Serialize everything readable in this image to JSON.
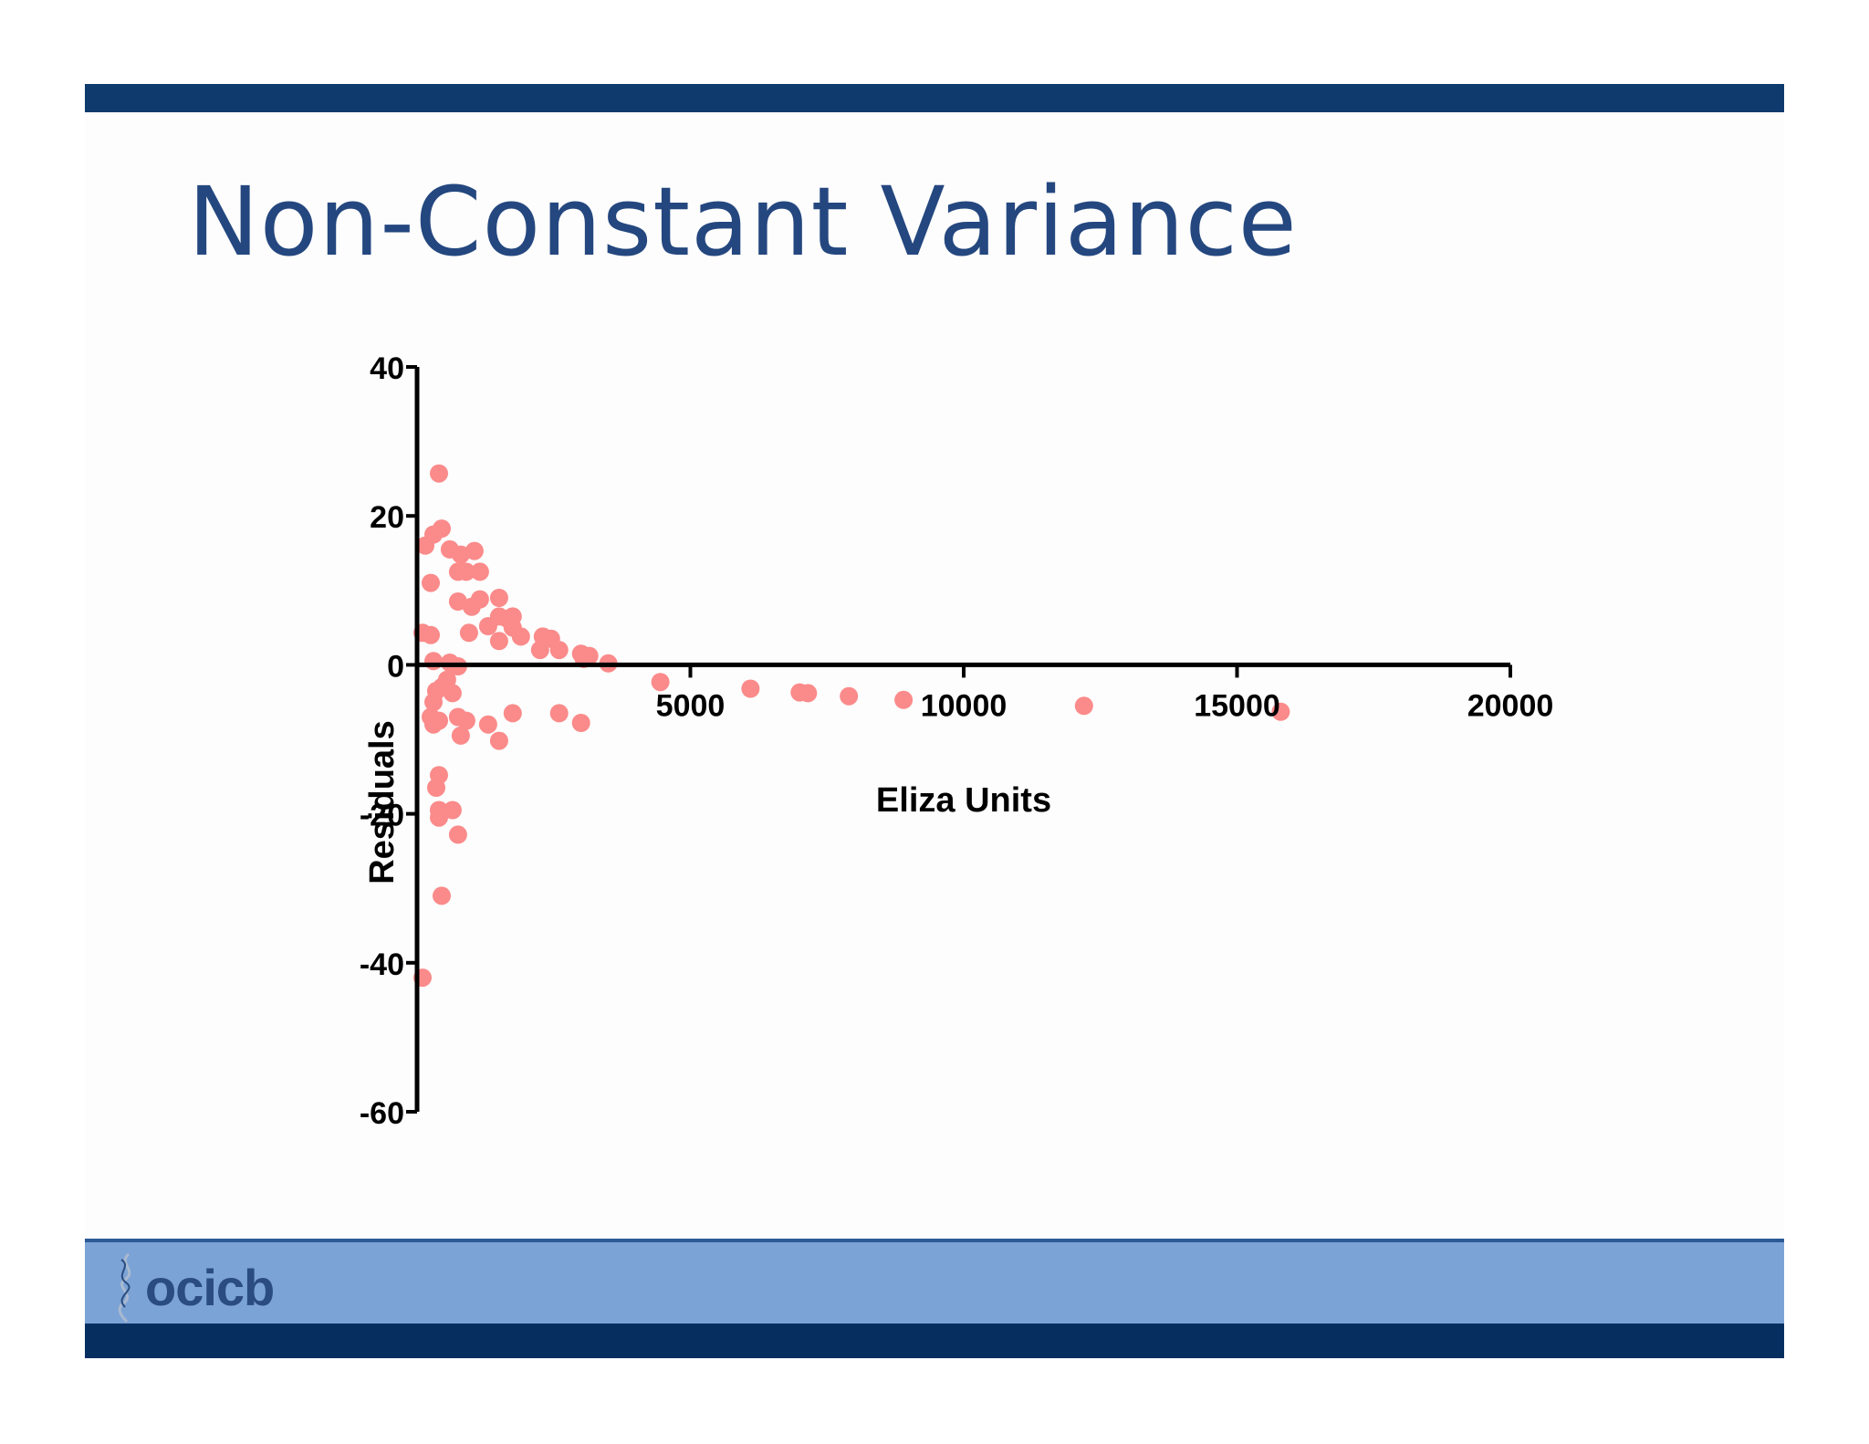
{
  "slide": {
    "title": "Non-Constant Variance",
    "logo_text": "ocicb",
    "colors": {
      "top_bar": "#0e3a6e",
      "title": "#24477f",
      "footer_band": "#7ca3d5",
      "footer_dark": "#062f60",
      "points": "#fb8a8a"
    }
  },
  "chart_data": {
    "type": "scatter",
    "xlabel": "Eliza Units",
    "ylabel": "Residuals",
    "xlim": [
      0,
      20000
    ],
    "ylim": [
      -60,
      40
    ],
    "xticks": [
      5000,
      10000,
      15000,
      20000
    ],
    "yticks": [
      40,
      20,
      0,
      -20,
      -40,
      -60
    ],
    "grid": false,
    "x_axis_at_y": 0,
    "points": [
      [
        400,
        25.7
      ],
      [
        450,
        18.3
      ],
      [
        300,
        17.5
      ],
      [
        150,
        16.0
      ],
      [
        250,
        11.0
      ],
      [
        600,
        15.5
      ],
      [
        800,
        14.8
      ],
      [
        1050,
        15.3
      ],
      [
        750,
        12.5
      ],
      [
        900,
        12.5
      ],
      [
        1150,
        12.5
      ],
      [
        750,
        8.5
      ],
      [
        1000,
        7.8
      ],
      [
        1150,
        8.8
      ],
      [
        1500,
        9.0
      ],
      [
        1500,
        6.5
      ],
      [
        1650,
        6.2
      ],
      [
        1750,
        6.5
      ],
      [
        1300,
        5.2
      ],
      [
        1750,
        5.0
      ],
      [
        950,
        4.3
      ],
      [
        100,
        4.3
      ],
      [
        250,
        4.0
      ],
      [
        1500,
        3.2
      ],
      [
        1900,
        3.8
      ],
      [
        2300,
        3.8
      ],
      [
        2450,
        3.5
      ],
      [
        2250,
        2.0
      ],
      [
        2600,
        2.0
      ],
      [
        3000,
        1.5
      ],
      [
        3150,
        1.2
      ],
      [
        3050,
        0.8
      ],
      [
        3500,
        0.2
      ],
      [
        300,
        0.5
      ],
      [
        600,
        0.3
      ],
      [
        750,
        -0.2
      ],
      [
        550,
        -2.0
      ],
      [
        450,
        -3.0
      ],
      [
        350,
        -3.5
      ],
      [
        650,
        -3.8
      ],
      [
        300,
        -5.0
      ],
      [
        250,
        -7.0
      ],
      [
        400,
        -7.5
      ],
      [
        750,
        -7.0
      ],
      [
        900,
        -7.5
      ],
      [
        300,
        -8.0
      ],
      [
        1300,
        -8.0
      ],
      [
        1750,
        -6.5
      ],
      [
        2600,
        -6.5
      ],
      [
        3000,
        -7.8
      ],
      [
        800,
        -9.5
      ],
      [
        1500,
        -10.2
      ],
      [
        400,
        -14.8
      ],
      [
        350,
        -16.5
      ],
      [
        400,
        -19.5
      ],
      [
        650,
        -19.5
      ],
      [
        400,
        -20.5
      ],
      [
        750,
        -22.8
      ],
      [
        450,
        -31.0
      ],
      [
        100,
        -42.0
      ],
      [
        4450,
        -2.3
      ],
      [
        6100,
        -3.2
      ],
      [
        7000,
        -3.7
      ],
      [
        7150,
        -3.8
      ],
      [
        7900,
        -4.2
      ],
      [
        8900,
        -4.7
      ],
      [
        12200,
        -5.5
      ],
      [
        15800,
        -6.3
      ]
    ]
  }
}
